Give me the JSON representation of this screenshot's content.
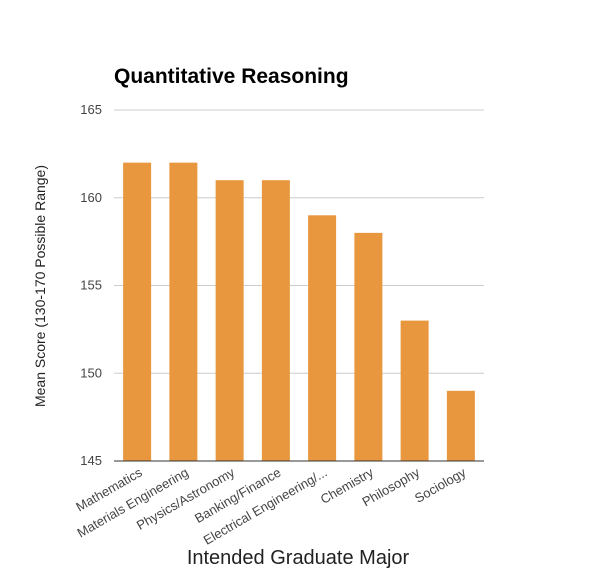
{
  "chart_data": {
    "type": "bar",
    "title": "Quantitative Reasoning",
    "xlabel": "Intended Graduate Major",
    "ylabel": "Mean Score (130-170 Possible Range)",
    "categories": [
      "Mathematics",
      "Materials Engineering",
      "Physics/Astronomy",
      "Banking/Finance",
      "Electrical Engineering/...",
      "Chemistry",
      "Philosophy",
      "Sociology"
    ],
    "values": [
      162,
      162,
      161,
      161,
      159,
      158,
      153,
      149
    ],
    "ylim": [
      145,
      165
    ],
    "yticks": [
      145,
      150,
      155,
      160,
      165
    ],
    "ytick_labels": [
      "145",
      "150",
      "155",
      "160",
      "165"
    ],
    "grid": true,
    "legend": "none",
    "colors": {
      "bar": "#e8973e",
      "grid": "#cccccc",
      "baseline": "#333333"
    }
  }
}
